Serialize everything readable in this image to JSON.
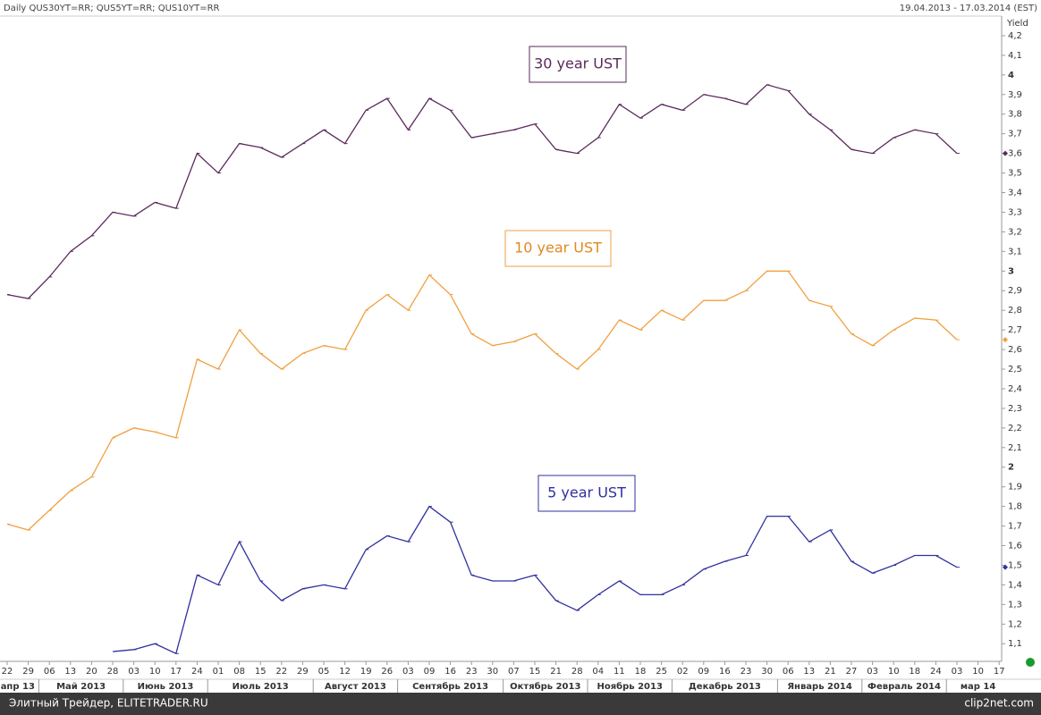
{
  "chart_data": {
    "type": "line",
    "title": "Daily QUS30YT=RR; QUS5YT=RR; QUS10YT=RR",
    "subtitle": "19.04.2013 - 17.03.2014 (EST)",
    "y_label": "Yield",
    "footer": "Элитный Трейдер, ELITETRADER.RU",
    "watermark": "clip2net.com",
    "categories": [
      "22",
      "29",
      "06",
      "13",
      "20",
      "28",
      "03",
      "10",
      "17",
      "24",
      "01",
      "08",
      "15",
      "22",
      "29",
      "05",
      "12",
      "19",
      "26",
      "03",
      "09",
      "16",
      "23",
      "30",
      "07",
      "15",
      "21",
      "28",
      "04",
      "11",
      "18",
      "25",
      "02",
      "09",
      "16",
      "23",
      "30",
      "06",
      "13",
      "21",
      "27",
      "03",
      "10",
      "18",
      "24",
      "03",
      "10",
      "17"
    ],
    "months": [
      "апр 13",
      "Май 2013",
      "Июнь 2013",
      "Июль 2013",
      "Август 2013",
      "Сентябрь 2013",
      "Октябрь 2013",
      "Ноябрь 2013",
      "Декабрь 2013",
      "Январь 2014",
      "Февраль 2014",
      "мар 14"
    ],
    "series": [
      {
        "name": "30 year UST",
        "color": "#5a2a5a",
        "values": [
          2.88,
          2.86,
          2.97,
          3.1,
          3.18,
          3.3,
          3.28,
          3.35,
          3.32,
          3.6,
          3.5,
          3.65,
          3.63,
          3.58,
          3.65,
          3.72,
          3.65,
          3.82,
          3.88,
          3.72,
          3.88,
          3.82,
          3.68,
          3.7,
          3.72,
          3.75,
          3.62,
          3.6,
          3.68,
          3.85,
          3.78,
          3.85,
          3.82,
          3.9,
          3.88,
          3.85,
          3.95,
          3.92,
          3.8,
          3.72,
          3.62,
          3.6,
          3.68,
          3.72,
          3.7,
          3.6,
          null,
          null
        ]
      },
      {
        "name": "10 year UST",
        "color": "#f0a040",
        "values": [
          1.71,
          1.68,
          1.78,
          1.88,
          1.95,
          2.15,
          2.2,
          2.18,
          2.15,
          2.55,
          2.5,
          2.7,
          2.58,
          2.5,
          2.58,
          2.62,
          2.6,
          2.8,
          2.88,
          2.8,
          2.98,
          2.88,
          2.68,
          2.62,
          2.64,
          2.68,
          2.58,
          2.5,
          2.6,
          2.75,
          2.7,
          2.8,
          2.75,
          2.85,
          2.85,
          2.9,
          3.0,
          3.0,
          2.85,
          2.82,
          2.68,
          2.62,
          2.7,
          2.76,
          2.75,
          2.65,
          null,
          null
        ]
      },
      {
        "name": "5 year UST",
        "color": "#3030a0",
        "values": [
          null,
          null,
          null,
          null,
          null,
          1.06,
          1.07,
          1.1,
          1.05,
          1.45,
          1.4,
          1.62,
          1.42,
          1.32,
          1.38,
          1.4,
          1.38,
          1.58,
          1.65,
          1.62,
          1.8,
          1.72,
          1.45,
          1.42,
          1.42,
          1.45,
          1.32,
          1.27,
          1.35,
          1.42,
          1.35,
          1.35,
          1.4,
          1.48,
          1.52,
          1.55,
          1.75,
          1.75,
          1.62,
          1.68,
          1.52,
          1.46,
          1.5,
          1.55,
          1.55,
          1.49,
          null,
          null
        ]
      }
    ],
    "ylim": [
      1.01,
      4.3
    ],
    "yticks": [
      {
        "value": 1.1,
        "label": "1,1"
      },
      {
        "value": 1.2,
        "label": "1,2"
      },
      {
        "value": 1.3,
        "label": "1,3"
      },
      {
        "value": 1.4,
        "label": "1,4"
      },
      {
        "value": 1.5,
        "label": "1,5"
      },
      {
        "value": 1.6,
        "label": "1,6"
      },
      {
        "value": 1.7,
        "label": "1,7"
      },
      {
        "value": 1.8,
        "label": "1,8"
      },
      {
        "value": 1.9,
        "label": "1,9"
      },
      2,
      {
        "value": 2.1,
        "label": "2,1"
      },
      {
        "value": 2.2,
        "label": "2,2"
      },
      {
        "value": 2.3,
        "label": "2,3"
      },
      {
        "value": 2.4,
        "label": "2,4"
      },
      {
        "value": 2.5,
        "label": "2,5"
      },
      {
        "value": 2.6,
        "label": "2,6"
      },
      {
        "value": 2.7,
        "label": "2,7"
      },
      {
        "value": 2.8,
        "label": "2,8"
      },
      {
        "value": 2.9,
        "label": "2,9"
      },
      3,
      {
        "value": 3.1,
        "label": "3,1"
      },
      {
        "value": 3.2,
        "label": "3,2"
      },
      {
        "value": 3.3,
        "label": "3,3"
      },
      {
        "value": 3.4,
        "label": "3,4"
      },
      {
        "value": 3.5,
        "label": "3,5"
      },
      {
        "value": 3.6,
        "label": "3,6"
      },
      {
        "value": 3.7,
        "label": "3,7"
      },
      {
        "value": 3.8,
        "label": "3,8"
      },
      {
        "value": 3.9,
        "label": "3,9"
      },
      4,
      {
        "value": 4.1,
        "label": "4,1"
      },
      {
        "value": 4.2,
        "label": "4,2"
      }
    ],
    "grid": false
  }
}
